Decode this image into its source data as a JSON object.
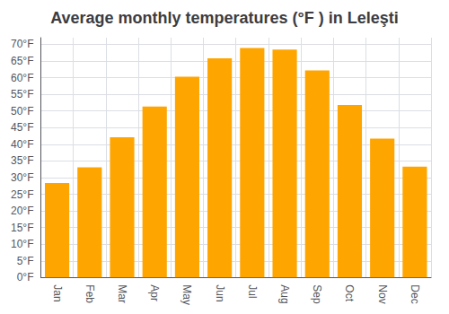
{
  "chart_data": {
    "type": "bar",
    "title": "Average monthly temperatures (°F ) in Leleşti",
    "categories": [
      "Jan",
      "Feb",
      "Mar",
      "Apr",
      "May",
      "Jun",
      "Jul",
      "Aug",
      "Sep",
      "Oct",
      "Nov",
      "Dec"
    ],
    "values": [
      28.4,
      33.1,
      42.1,
      51.3,
      60.3,
      65.8,
      68.9,
      68.4,
      62.2,
      51.8,
      41.7,
      33.3
    ],
    "color": "#FFA500",
    "ylim": [
      0,
      72
    ],
    "yticks": [
      {
        "value": 0,
        "label": "0°F"
      },
      {
        "value": 5,
        "label": "5°F"
      },
      {
        "value": 10,
        "label": "10°F"
      },
      {
        "value": 15,
        "label": "15°F"
      },
      {
        "value": 20,
        "label": "20°F"
      },
      {
        "value": 25,
        "label": "25°F"
      },
      {
        "value": 30,
        "label": "30°F"
      },
      {
        "value": 35,
        "label": "35°F"
      },
      {
        "value": 40,
        "label": "40°F"
      },
      {
        "value": 45,
        "label": "45°F"
      },
      {
        "value": 50,
        "label": "50°F"
      },
      {
        "value": 55,
        "label": "55°F"
      },
      {
        "value": 60,
        "label": "60°F"
      },
      {
        "value": 65,
        "label": "65°F"
      },
      {
        "value": 70,
        "label": "70°F"
      }
    ],
    "grid": true
  }
}
